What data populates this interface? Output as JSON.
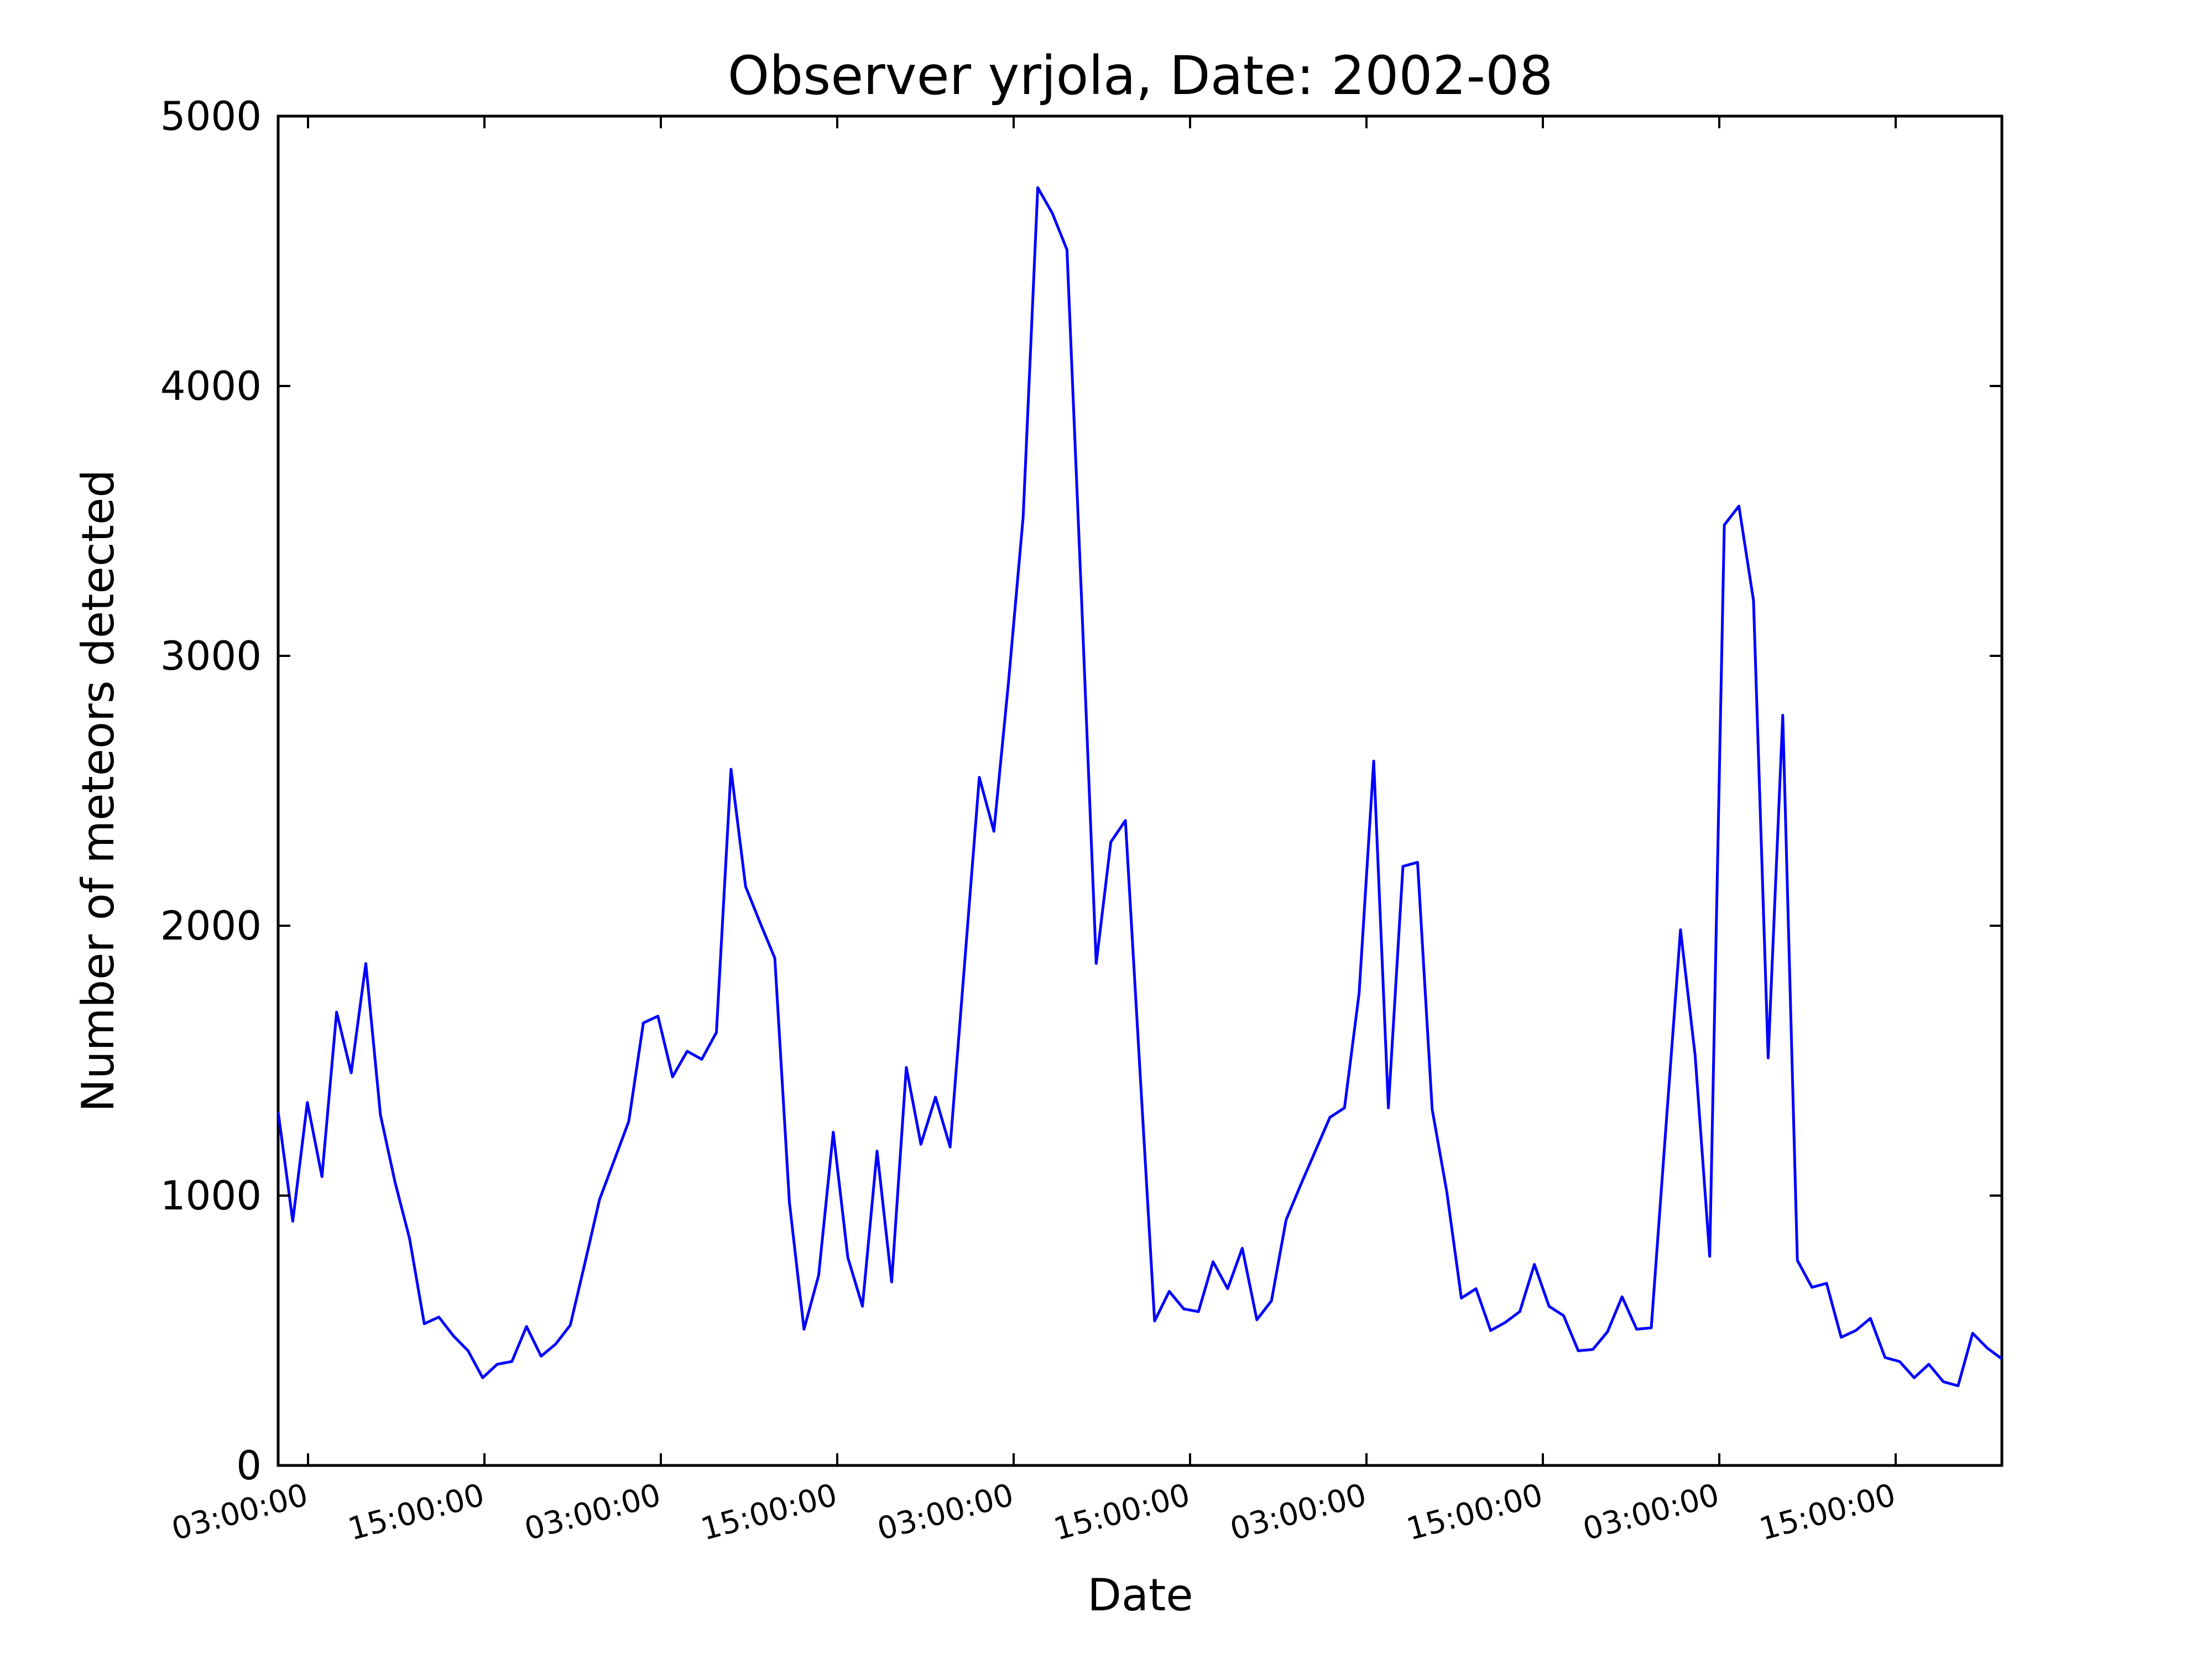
{
  "chart_data": {
    "type": "line",
    "title": "Observer yrjola, Date: 2002-08",
    "xlabel": "Date",
    "ylabel": "Number of meteors detected",
    "ylim": [
      0,
      5000
    ],
    "yticks": [
      0,
      1000,
      2000,
      3000,
      4000,
      5000
    ],
    "xticks": [
      "03:00:00",
      "15:00:00",
      "03:00:00",
      "15:00:00",
      "03:00:00",
      "15:00:00",
      "03:00:00",
      "15:00:00",
      "03:00:00",
      "15:00:00"
    ],
    "grid": false,
    "line_color": "#0000ff",
    "series": [
      {
        "values": [
          1310,
          905,
          1345,
          1070,
          1680,
          1455,
          1860,
          1300,
          1050,
          840,
          525,
          550,
          480,
          425,
          325,
          375,
          385,
          515,
          405,
          450,
          520,
          750,
          985,
          1130,
          1275,
          1640,
          1665,
          1440,
          1535,
          1505,
          1605,
          2580,
          2145,
          2010,
          1880,
          975,
          505,
          705,
          1235,
          770,
          590,
          1165,
          680,
          1475,
          1190,
          1365,
          1180,
          1865,
          2550,
          2350,
          2905,
          3515,
          4735,
          4640,
          4505,
          3210,
          1860,
          2310,
          2390,
          1460,
          535,
          645,
          580,
          570,
          755,
          655,
          805,
          540,
          610,
          910,
          1040,
          1165,
          1290,
          1325,
          1750,
          2610,
          1325,
          2220,
          2235,
          1320,
          1015,
          620,
          655,
          500,
          530,
          570,
          745,
          590,
          555,
          425,
          430,
          495,
          625,
          505,
          510,
          1250,
          1985,
          1520,
          775,
          3485,
          3555,
          3205,
          1510,
          2780,
          760,
          660,
          675,
          475,
          500,
          545,
          400,
          385,
          325,
          375,
          310,
          295,
          490,
          435,
          395
        ]
      }
    ]
  }
}
